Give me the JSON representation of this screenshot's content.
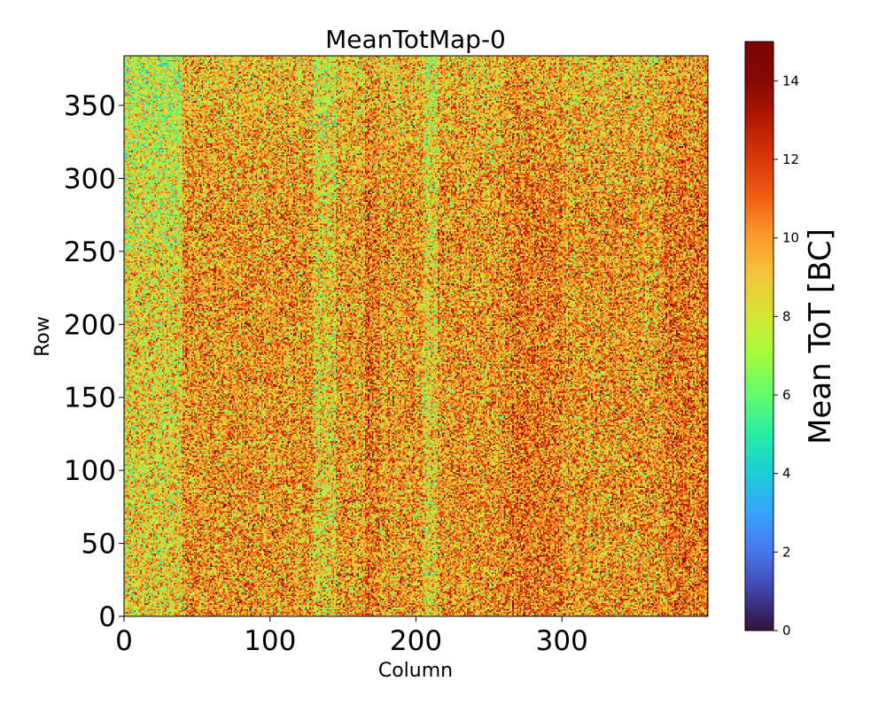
{
  "chart_data": {
    "type": "heatmap",
    "title": "MeanTotMap-0",
    "xlabel": "Column",
    "ylabel": "Row",
    "xlim": [
      0,
      400
    ],
    "ylim": [
      0,
      384
    ],
    "x_ticks": [
      {
        "value": 0,
        "label": "0"
      },
      {
        "value": 100,
        "label": "100"
      },
      {
        "value": 200,
        "label": "200"
      },
      {
        "value": 300,
        "label": "300"
      }
    ],
    "y_ticks": [
      {
        "value": 0,
        "label": "0"
      },
      {
        "value": 50,
        "label": "50"
      },
      {
        "value": 100,
        "label": "100"
      },
      {
        "value": 150,
        "label": "150"
      },
      {
        "value": 200,
        "label": "200"
      },
      {
        "value": 250,
        "label": "250"
      },
      {
        "value": 300,
        "label": "300"
      },
      {
        "value": 350,
        "label": "350"
      }
    ],
    "colorbar": {
      "label": "Mean ToT [BC]",
      "range": [
        0,
        15
      ],
      "colormap": "turbo",
      "ticks": [
        {
          "value": 0,
          "label": "0"
        },
        {
          "value": 2,
          "label": "2"
        },
        {
          "value": 4,
          "label": "4"
        },
        {
          "value": 6,
          "label": "6"
        },
        {
          "value": 8,
          "label": "8"
        },
        {
          "value": 10,
          "label": "10"
        },
        {
          "value": 12,
          "label": "12"
        },
        {
          "value": 14,
          "label": "14"
        }
      ]
    },
    "grid": false,
    "field_summary": {
      "typical_value": 10,
      "value_spread": [
        7,
        14
      ],
      "greener_low_columns": [
        [
          0,
          40
        ],
        [
          130,
          145
        ],
        [
          205,
          215
        ]
      ],
      "greener_low_rows": [
        [
          280,
          384
        ]
      ],
      "redder_high_columns": [
        [
          165,
          175
        ],
        [
          260,
          300
        ],
        [
          370,
          400
        ]
      ]
    }
  }
}
